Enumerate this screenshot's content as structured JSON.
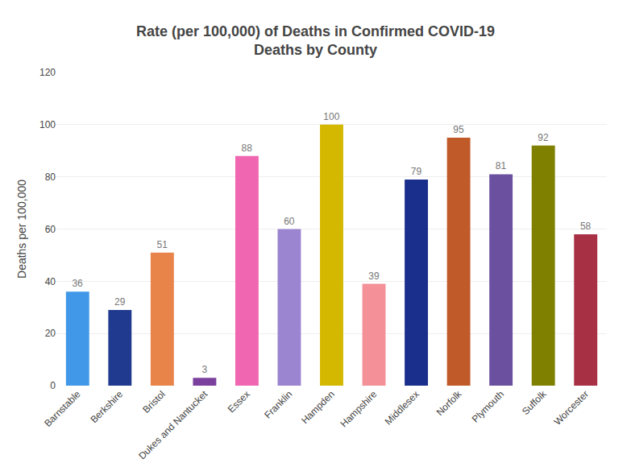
{
  "chart_data": {
    "type": "bar",
    "title": "Rate (per 100,000) of Deaths in Confirmed COVID-19\nDeaths by County",
    "ylabel": "Deaths per 100,000",
    "categories": [
      "Barnstable",
      "Berkshire",
      "Bristol",
      "Dukes and Nantucket",
      "Essex",
      "Franklin",
      "Hampden",
      "Hampshire",
      "Middlesex",
      "Norfolk",
      "Plymouth",
      "Suffolk",
      "Worcester"
    ],
    "values": [
      36,
      29,
      51,
      3,
      88,
      60,
      100,
      39,
      79,
      95,
      81,
      92,
      58
    ],
    "colors": [
      "#4198E8",
      "#1F3A8F",
      "#E8834A",
      "#7B3F9E",
      "#F066B0",
      "#9B85D0",
      "#D4B800",
      "#F49098",
      "#1A2E8C",
      "#C05A28",
      "#6B50A0",
      "#808000",
      "#A83045"
    ],
    "ylim": [
      0,
      120
    ],
    "yticks": [
      0,
      20,
      40,
      60,
      80,
      100,
      120
    ],
    "grid": true,
    "data_labels": true
  }
}
